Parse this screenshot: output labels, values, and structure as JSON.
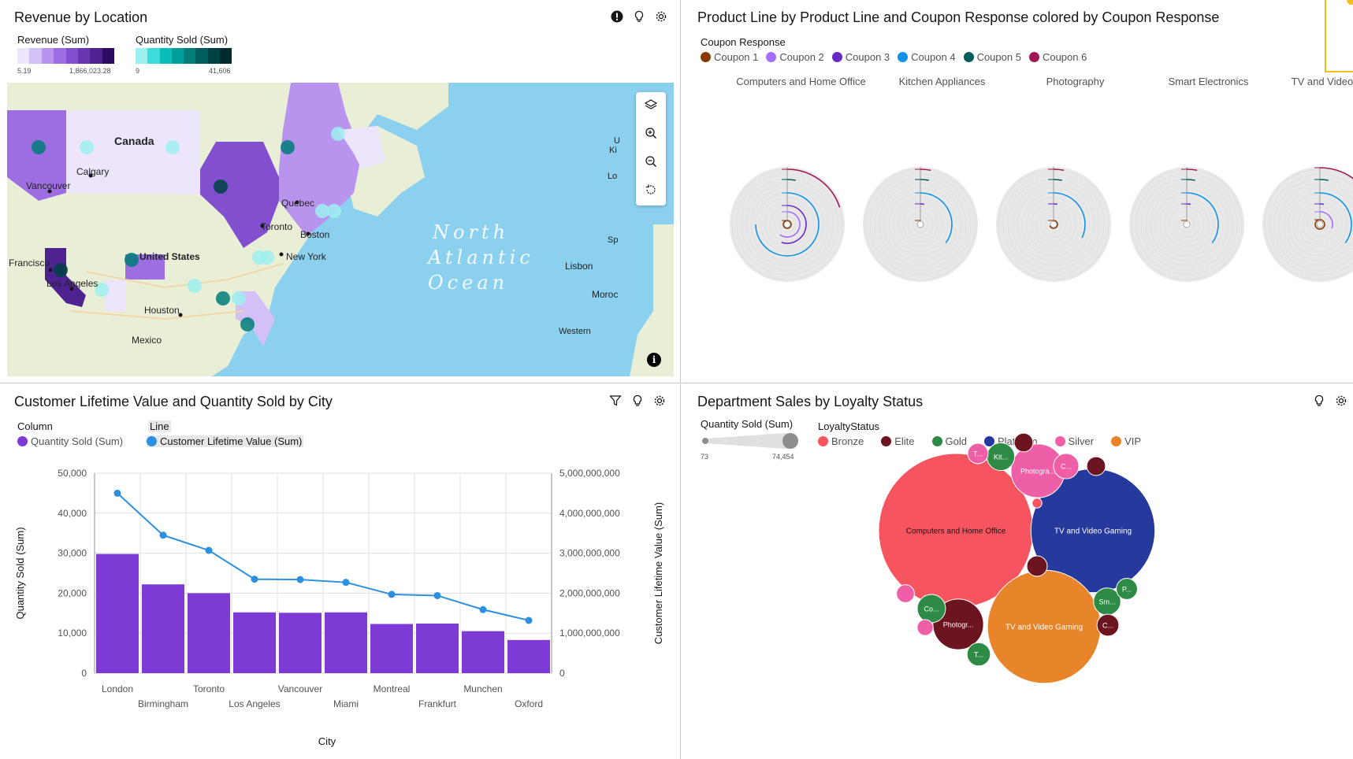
{
  "revenue_map": {
    "title": "Revenue by Location",
    "legend_revenue": {
      "label": "Revenue (Sum)",
      "min": "5.19",
      "max": "1,866,023.28",
      "colors": [
        "#ece5fb",
        "#d2c0f6",
        "#b994ef",
        "#9d6ee2",
        "#8250cf",
        "#6937b0",
        "#4e2291",
        "#2c0b63"
      ]
    },
    "legend_quantity": {
      "label": "Quantity Sold (Sum)",
      "min": "9",
      "max": "41,606",
      "colors": [
        "#9ef0f0",
        "#3ddbd9",
        "#08bdba",
        "#009d9a",
        "#007d79",
        "#005d5d",
        "#004144",
        "#022b30"
      ]
    },
    "map_labels": [
      "Canada",
      "Calgary",
      "Vancouver",
      "Quebec",
      "Toronto",
      "Boston",
      "United States",
      "New York",
      "Francisco",
      "Los Angeles",
      "Houston",
      "Mexico",
      "Lisbon",
      "Western",
      "Ki",
      "Lo",
      "Sp",
      "Moroc",
      "U"
    ],
    "ocean_lines": [
      "North",
      "Atlantic",
      "Ocean"
    ],
    "icons": [
      "alert-icon",
      "lightbulb-icon",
      "settings-icon"
    ],
    "map_controls": [
      "layers-icon",
      "zoom-in-icon",
      "zoom-out-icon",
      "reset-icon"
    ]
  },
  "product_line": {
    "title": "Product Line by Product Line and Coupon Response colored by Coupon Response",
    "legend_title": "Coupon Response",
    "legend": [
      {
        "label": "Coupon 1",
        "color": "#8a3800"
      },
      {
        "label": "Coupon 2",
        "color": "#a56eff"
      },
      {
        "label": "Coupon 3",
        "color": "#6929c4"
      },
      {
        "label": "Coupon 4",
        "color": "#1192e8"
      },
      {
        "label": "Coupon 5",
        "color": "#005d5d"
      },
      {
        "label": "Coupon 6",
        "color": "#9f1853"
      }
    ],
    "categories": [
      "Computers and Home Office",
      "Kitchen Appliances",
      "Photography",
      "Smart Electronics",
      "TV and Video Gaming"
    ]
  },
  "clv_chart": {
    "title": "Customer Lifetime Value and Quantity Sold by City",
    "legend_column_title": "Column",
    "legend_line_title": "Line",
    "legend_column": "Quantity Sold (Sum)",
    "legend_line": "Customer Lifetime Value (Sum)",
    "bar_color": "#7d3ad4",
    "line_color": "#2d8fe0",
    "icons": [
      "filter-icon",
      "lightbulb-icon",
      "settings-icon"
    ]
  },
  "chart_data": {
    "type": "bar",
    "title": "Customer Lifetime Value and Quantity Sold by City",
    "xlabel": "City",
    "ylabel": "Quantity Sold (Sum)",
    "y2label": "Customer Lifetime Value (Sum)",
    "categories": [
      "London",
      "Birmingham",
      "Toronto",
      "Los Angeles",
      "Vancouver",
      "Miami",
      "Montreal",
      "Frankfurt",
      "Munchen",
      "Oxford"
    ],
    "ylim": [
      0,
      50000
    ],
    "y2lim": [
      0,
      5000000000
    ],
    "yticks": [
      "0",
      "10,000",
      "20,000",
      "30,000",
      "40,000",
      "50,000"
    ],
    "y2ticks": [
      "0",
      "1,000,000,000",
      "2,000,000,000",
      "3,000,000,000",
      "4,000,000,000",
      "5,000,000,000"
    ],
    "series": [
      {
        "name": "Quantity Sold (Sum)",
        "type": "bar",
        "axis": "left",
        "values": [
          29800,
          22200,
          20000,
          15200,
          15100,
          15200,
          12300,
          12400,
          10500,
          8300
        ]
      },
      {
        "name": "Customer Lifetime Value (Sum)",
        "type": "line",
        "axis": "right",
        "values": [
          4500000000,
          3450000000,
          3070000000,
          2350000000,
          2340000000,
          2270000000,
          1970000000,
          1940000000,
          1590000000,
          1320000000
        ]
      }
    ],
    "grid": true
  },
  "dept_sales": {
    "title": "Department Sales by Loyalty Status",
    "size_legend_label": "Quantity Sold (Sum)",
    "size_min": "73",
    "size_max": "74,454",
    "legend_title": "LoyaltyStatus",
    "legend": [
      {
        "label": "Bronze",
        "color": "#f6545f"
      },
      {
        "label": "Elite",
        "color": "#6c1420"
      },
      {
        "label": "Gold",
        "color": "#2e8b45"
      },
      {
        "label": "Platinum",
        "color": "#263a9e"
      },
      {
        "label": "Silver",
        "color": "#ee5fa7"
      },
      {
        "label": "VIP",
        "color": "#e8842a"
      }
    ],
    "bubbles": [
      {
        "label": "Computers and Home Office",
        "status": "Bronze",
        "qty": 74454
      },
      {
        "label": "TV and Video Gaming",
        "status": "Platinum",
        "qty": 48000
      },
      {
        "label": "TV and Video Gaming",
        "status": "VIP",
        "qty": 40000
      },
      {
        "label": "Photogra...",
        "status": "Silver",
        "qty": 9000
      },
      {
        "label": "Photogr...",
        "status": "Elite",
        "qty": 8000
      },
      {
        "label": "Kit...",
        "status": "Gold",
        "qty": 2400
      },
      {
        "label": "T...",
        "status": "Silver",
        "qty": 1300
      },
      {
        "label": "C...",
        "status": "Silver",
        "qty": 2000
      },
      {
        "label": "Co...",
        "status": "Gold",
        "qty": 2500
      },
      {
        "label": "Sm...",
        "status": "Gold",
        "qty": 2300
      },
      {
        "label": "C...",
        "status": "Elite",
        "qty": 1500
      },
      {
        "label": "P...",
        "status": "Gold",
        "qty": 1400
      },
      {
        "label": "T...",
        "status": "Gold",
        "qty": 1700
      },
      {
        "label": "",
        "status": "Elite",
        "qty": 1100
      },
      {
        "label": "",
        "status": "Elite",
        "qty": 1100
      },
      {
        "label": "",
        "status": "Elite",
        "qty": 1300
      },
      {
        "label": "",
        "status": "Silver",
        "qty": 1000
      },
      {
        "label": "",
        "status": "Silver",
        "qty": 800
      },
      {
        "label": "",
        "status": "Bronze",
        "qty": 300
      }
    ],
    "icons": [
      "lightbulb-icon",
      "settings-icon"
    ]
  }
}
